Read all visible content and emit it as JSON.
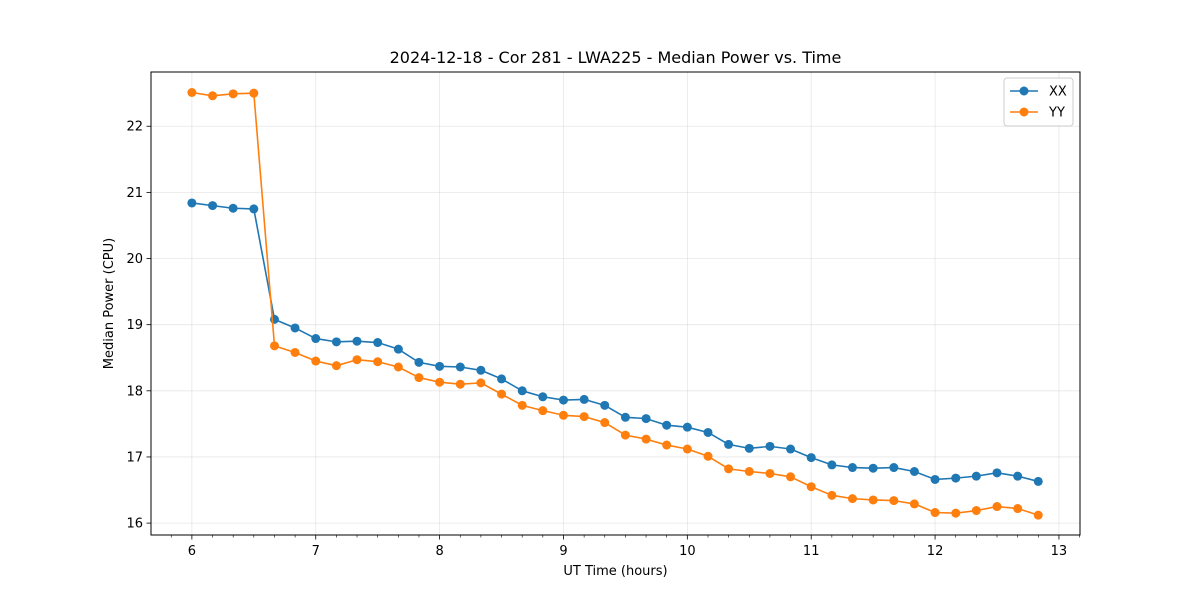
{
  "chart_data": {
    "type": "line",
    "title": "2024-12-18 - Cor 281 - LWA225 - Median Power vs. Time",
    "xlabel": "UT Time (hours)",
    "ylabel": "Median Power (CPU)",
    "xlim": [
      5.67,
      13.17
    ],
    "ylim": [
      15.82,
      22.82
    ],
    "xticks": [
      6,
      7,
      8,
      9,
      10,
      11,
      12,
      13
    ],
    "xtick_labels": [
      "6",
      "7",
      "8",
      "9",
      "10",
      "11",
      "12",
      "13"
    ],
    "yticks": [
      16,
      17,
      18,
      19,
      20,
      21,
      22
    ],
    "ytick_labels": [
      "16",
      "17",
      "18",
      "19",
      "20",
      "21",
      "22"
    ],
    "grid": true,
    "legend_position": "top-right",
    "x": [
      6.0,
      6.167,
      6.333,
      6.5,
      6.667,
      6.833,
      7.0,
      7.167,
      7.333,
      7.5,
      7.667,
      7.833,
      8.0,
      8.167,
      8.333,
      8.5,
      8.667,
      8.833,
      9.0,
      9.167,
      9.333,
      9.5,
      9.667,
      9.833,
      10.0,
      10.167,
      10.333,
      10.5,
      10.667,
      10.833,
      11.0,
      11.167,
      11.333,
      11.5,
      11.667,
      11.833,
      12.0,
      12.167,
      12.333,
      12.5,
      12.667,
      12.833
    ],
    "series": [
      {
        "name": "XX",
        "color": "#1f77b4",
        "values": [
          20.84,
          20.8,
          20.76,
          20.75,
          19.08,
          18.95,
          18.79,
          18.74,
          18.75,
          18.73,
          18.63,
          18.43,
          18.37,
          18.36,
          18.31,
          18.18,
          18.0,
          17.91,
          17.86,
          17.87,
          17.78,
          17.6,
          17.58,
          17.48,
          17.45,
          17.37,
          17.19,
          17.13,
          17.16,
          17.12,
          16.99,
          16.88,
          16.84,
          16.83,
          16.84,
          16.78,
          16.66,
          16.68,
          16.71,
          16.76,
          16.71,
          16.63
        ]
      },
      {
        "name": "YY",
        "color": "#ff7f0e",
        "values": [
          22.51,
          22.46,
          22.49,
          22.5,
          18.68,
          18.58,
          18.45,
          18.38,
          18.47,
          18.44,
          18.36,
          18.2,
          18.13,
          18.1,
          18.12,
          17.95,
          17.78,
          17.7,
          17.63,
          17.61,
          17.52,
          17.33,
          17.27,
          17.18,
          17.12,
          17.01,
          16.82,
          16.78,
          16.75,
          16.7,
          16.55,
          16.42,
          16.37,
          16.35,
          16.34,
          16.29,
          16.16,
          16.15,
          16.19,
          16.25,
          16.22,
          16.12
        ]
      }
    ]
  }
}
